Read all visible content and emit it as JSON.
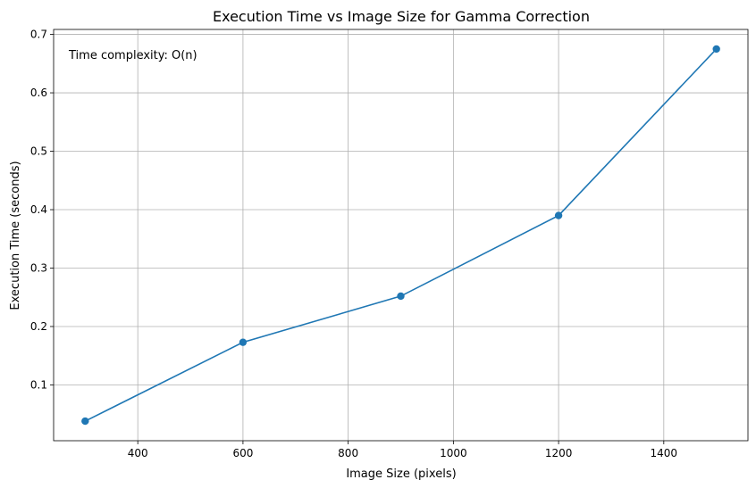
{
  "chart_data": {
    "type": "line",
    "title": "Execution Time vs Image Size for Gamma Correction",
    "xlabel": "Image Size (pixels)",
    "ylabel": "Execution Time (seconds)",
    "annotation": "Time complexity: O(n)",
    "x": [
      300,
      600,
      900,
      1200,
      1500
    ],
    "series": [
      {
        "values": [
          0.038,
          0.173,
          0.252,
          0.39,
          0.675
        ]
      }
    ],
    "xlim": [
      240,
      1560
    ],
    "ylim": [
      0.0045,
      0.7085
    ],
    "xticks": [
      400,
      600,
      800,
      1000,
      1200,
      1400
    ],
    "yticks": [
      0.1,
      0.2,
      0.3,
      0.4,
      0.5,
      0.6,
      0.7
    ],
    "xtick_labels": [
      "400",
      "600",
      "800",
      "1000",
      "1200",
      "1400"
    ],
    "ytick_labels": [
      "0.1",
      "0.2",
      "0.3",
      "0.4",
      "0.5",
      "0.6",
      "0.7"
    ],
    "grid": true,
    "marker": "circle",
    "colors": {
      "line": "#1f77b4",
      "grid": "#b0b0b0",
      "axes": "#000000"
    }
  }
}
